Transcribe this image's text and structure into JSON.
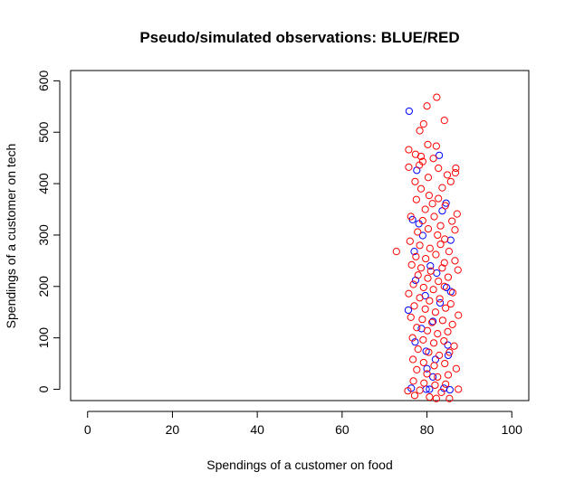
{
  "chart_data": {
    "type": "scatter",
    "title": "Pseudo/simulated observations: BLUE/RED",
    "xlabel": "Spendings of a customer on food",
    "ylabel": "Spendings of a customer on tech",
    "xlim": [
      -4,
      104
    ],
    "ylim": [
      -22,
      620
    ],
    "x_ticks": [
      0,
      20,
      40,
      60,
      80,
      100
    ],
    "y_ticks": [
      0,
      100,
      200,
      300,
      400,
      500,
      600
    ],
    "grid": false,
    "legend": "none",
    "marker": "open-circle",
    "series": [
      {
        "color": "#0000ff",
        "points": [
          [
            75.8,
            541
          ],
          [
            77.6,
            426
          ],
          [
            82.9,
            455
          ],
          [
            84.5,
            362
          ],
          [
            76.6,
            330
          ],
          [
            78.1,
            322
          ],
          [
            83.6,
            347
          ],
          [
            79.0,
            299
          ],
          [
            85.6,
            290
          ],
          [
            77.0,
            268
          ],
          [
            80.8,
            240
          ],
          [
            82.3,
            226
          ],
          [
            84.6,
            198
          ],
          [
            77.3,
            212
          ],
          [
            79.6,
            182
          ],
          [
            75.6,
            154
          ],
          [
            83.1,
            168
          ],
          [
            85.6,
            190
          ],
          [
            78.7,
            118
          ],
          [
            81.4,
            132
          ],
          [
            84.9,
            86
          ],
          [
            79.8,
            74
          ],
          [
            77.2,
            92
          ],
          [
            82.0,
            58
          ],
          [
            85.0,
            66
          ],
          [
            80.0,
            40
          ],
          [
            81.4,
            24
          ],
          [
            76.3,
            2
          ],
          [
            79.8,
            0
          ],
          [
            80.6,
            0
          ],
          [
            84.0,
            2
          ],
          [
            85.4,
            -1
          ]
        ]
      },
      {
        "color": "#ff0000",
        "points": [
          [
            82.3,
            568
          ],
          [
            80.0,
            551
          ],
          [
            84.1,
            523
          ],
          [
            79.2,
            516
          ],
          [
            78.3,
            503
          ],
          [
            80.2,
            476
          ],
          [
            75.7,
            466
          ],
          [
            82.2,
            473
          ],
          [
            77.3,
            457
          ],
          [
            78.6,
            453
          ],
          [
            81.5,
            449
          ],
          [
            75.7,
            432
          ],
          [
            78.2,
            436
          ],
          [
            79.0,
            443
          ],
          [
            82.7,
            430
          ],
          [
            84.8,
            417
          ],
          [
            86.8,
            430
          ],
          [
            80.3,
            412
          ],
          [
            77.2,
            404
          ],
          [
            83.6,
            392
          ],
          [
            85.6,
            404
          ],
          [
            86.7,
            421
          ],
          [
            78.6,
            390
          ],
          [
            80.5,
            377
          ],
          [
            82.7,
            371
          ],
          [
            84.3,
            357
          ],
          [
            77.5,
            369
          ],
          [
            81.3,
            361
          ],
          [
            79.6,
            350
          ],
          [
            87.1,
            341
          ],
          [
            76.2,
            336
          ],
          [
            79.0,
            328
          ],
          [
            81.7,
            336
          ],
          [
            83.2,
            318
          ],
          [
            85.9,
            327
          ],
          [
            77.8,
            306
          ],
          [
            80.3,
            312
          ],
          [
            82.5,
            300
          ],
          [
            84.2,
            292
          ],
          [
            86.6,
            310
          ],
          [
            76.0,
            288
          ],
          [
            78.3,
            280
          ],
          [
            80.7,
            274
          ],
          [
            83.2,
            282
          ],
          [
            85.2,
            268
          ],
          [
            72.8,
            268
          ],
          [
            77.4,
            258
          ],
          [
            79.7,
            254
          ],
          [
            82.1,
            262
          ],
          [
            84.1,
            246
          ],
          [
            86.6,
            250
          ],
          [
            76.4,
            242
          ],
          [
            78.6,
            236
          ],
          [
            80.9,
            230
          ],
          [
            83.6,
            236
          ],
          [
            87.3,
            232
          ],
          [
            77.9,
            222
          ],
          [
            80.2,
            216
          ],
          [
            82.7,
            210
          ],
          [
            85.0,
            218
          ],
          [
            76.8,
            204
          ],
          [
            79.2,
            198
          ],
          [
            81.5,
            194
          ],
          [
            84.1,
            200
          ],
          [
            86.1,
            188
          ],
          [
            75.7,
            186
          ],
          [
            78.3,
            178
          ],
          [
            80.6,
            172
          ],
          [
            83.0,
            176
          ],
          [
            85.6,
            166
          ],
          [
            77.0,
            162
          ],
          [
            79.6,
            156
          ],
          [
            82.0,
            150
          ],
          [
            84.4,
            158
          ],
          [
            87.4,
            144
          ],
          [
            76.2,
            140
          ],
          [
            78.9,
            136
          ],
          [
            81.2,
            130
          ],
          [
            83.7,
            134
          ],
          [
            86.0,
            126
          ],
          [
            77.6,
            120
          ],
          [
            80.1,
            114
          ],
          [
            82.5,
            108
          ],
          [
            84.9,
            112
          ],
          [
            76.6,
            100
          ],
          [
            79.1,
            96
          ],
          [
            81.6,
            90
          ],
          [
            84.0,
            94
          ],
          [
            86.4,
            84
          ],
          [
            77.9,
            78
          ],
          [
            80.4,
            72
          ],
          [
            82.9,
            66
          ],
          [
            85.3,
            72
          ],
          [
            76.7,
            58
          ],
          [
            79.2,
            52
          ],
          [
            81.7,
            46
          ],
          [
            84.2,
            50
          ],
          [
            86.9,
            40
          ],
          [
            77.6,
            38
          ],
          [
            80.0,
            30
          ],
          [
            82.5,
            24
          ],
          [
            85.0,
            28
          ],
          [
            76.8,
            16
          ],
          [
            79.3,
            12
          ],
          [
            81.9,
            8
          ],
          [
            84.4,
            10
          ],
          [
            87.4,
            0
          ],
          [
            78.3,
            -2
          ],
          [
            77.1,
            -12
          ],
          [
            80.6,
            -15
          ],
          [
            82.2,
            -18
          ],
          [
            85.3,
            -18
          ],
          [
            75.5,
            -3
          ],
          [
            83.4,
            -6
          ]
        ]
      }
    ]
  }
}
